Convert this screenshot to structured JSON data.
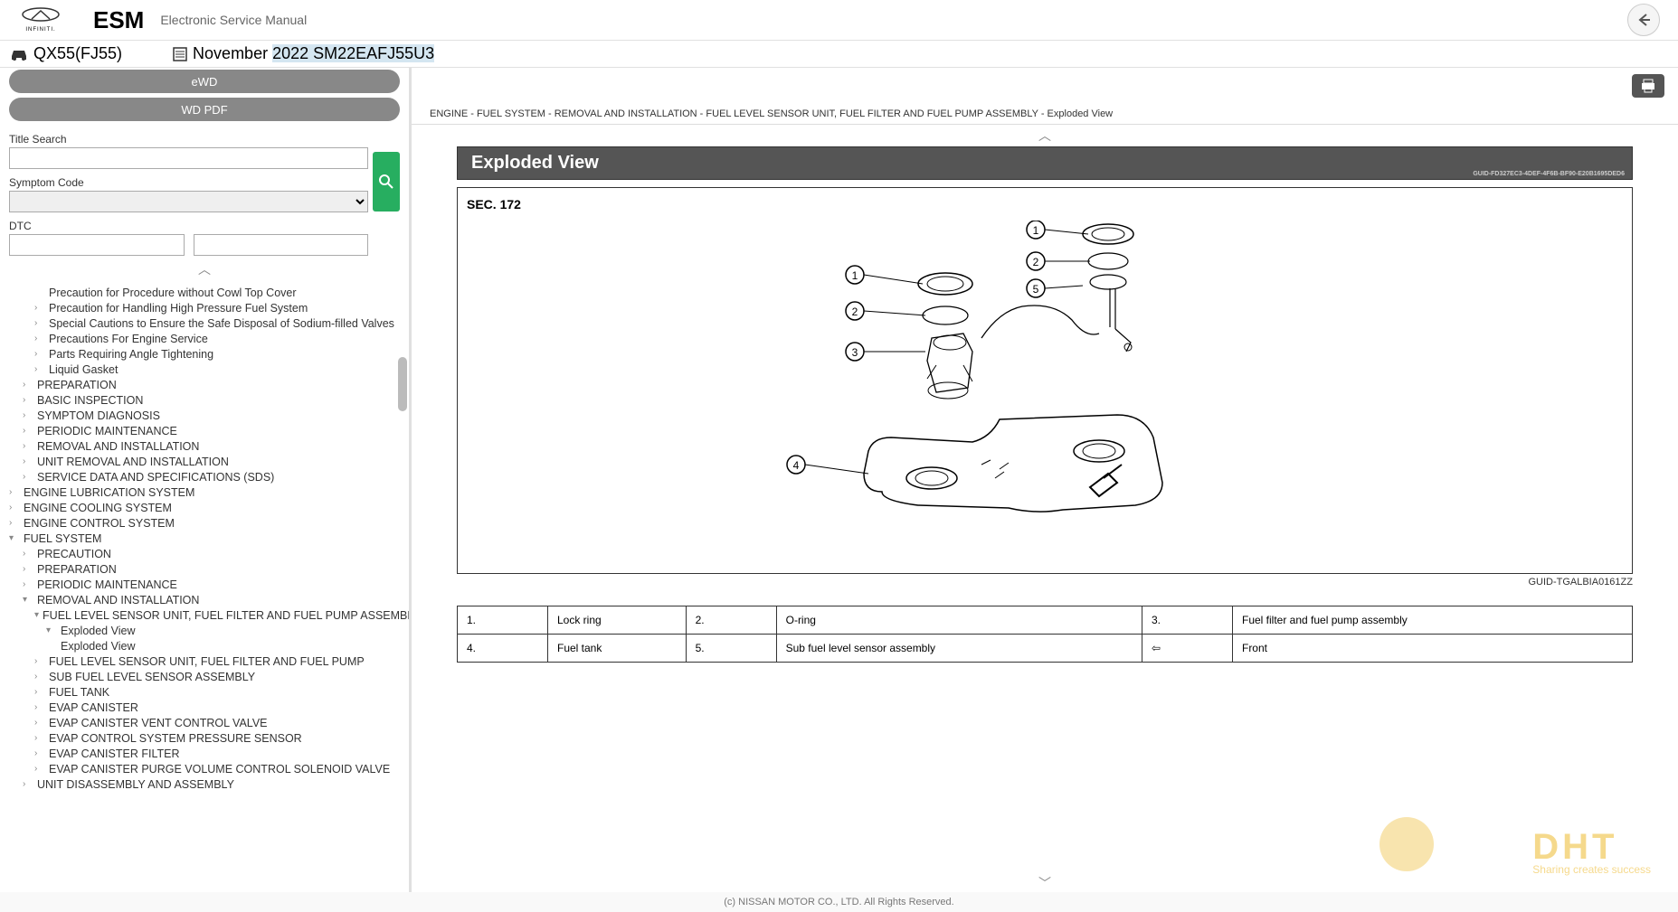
{
  "header": {
    "brand": "INFINITI.",
    "esm": "ESM",
    "subtitle": "Electronic Service Manual"
  },
  "model": {
    "name": "QX55(FJ55)",
    "month": "November ",
    "year": "2022",
    "code": " SM22EAFJ55U3"
  },
  "sidebar": {
    "ewd": "eWD",
    "wdpdf": "WD PDF",
    "title_search": "Title Search",
    "symptom_code": "Symptom Code",
    "dtc": "DTC"
  },
  "tree": [
    {
      "level": 2,
      "chev": "",
      "label": "Precaution for Procedure without Cowl Top Cover"
    },
    {
      "level": 2,
      "chev": "›",
      "label": "Precaution for Handling High Pressure Fuel System"
    },
    {
      "level": 2,
      "chev": "›",
      "label": "Special Cautions to Ensure the Safe Disposal of Sodium-filled Valves"
    },
    {
      "level": 2,
      "chev": "›",
      "label": "Precautions For Engine Service"
    },
    {
      "level": 2,
      "chev": "›",
      "label": "Parts Requiring Angle Tightening"
    },
    {
      "level": 2,
      "chev": "›",
      "label": "Liquid Gasket"
    },
    {
      "level": 1,
      "chev": "›",
      "label": "PREPARATION"
    },
    {
      "level": 1,
      "chev": "›",
      "label": "BASIC INSPECTION"
    },
    {
      "level": 1,
      "chev": "›",
      "label": "SYMPTOM DIAGNOSIS"
    },
    {
      "level": 1,
      "chev": "›",
      "label": "PERIODIC MAINTENANCE"
    },
    {
      "level": 1,
      "chev": "›",
      "label": "REMOVAL AND INSTALLATION"
    },
    {
      "level": 1,
      "chev": "›",
      "label": "UNIT REMOVAL AND INSTALLATION"
    },
    {
      "level": 1,
      "chev": "›",
      "label": "SERVICE DATA AND SPECIFICATIONS (SDS)"
    },
    {
      "level": 0,
      "chev": "›",
      "label": "ENGINE LUBRICATION SYSTEM"
    },
    {
      "level": 0,
      "chev": "›",
      "label": "ENGINE COOLING SYSTEM"
    },
    {
      "level": 0,
      "chev": "›",
      "label": "ENGINE CONTROL SYSTEM"
    },
    {
      "level": 0,
      "chev": "▾",
      "label": "FUEL SYSTEM"
    },
    {
      "level": 1,
      "chev": "›",
      "label": "PRECAUTION"
    },
    {
      "level": 1,
      "chev": "›",
      "label": "PREPARATION"
    },
    {
      "level": 1,
      "chev": "›",
      "label": "PERIODIC MAINTENANCE"
    },
    {
      "level": 1,
      "chev": "▾",
      "label": "REMOVAL AND INSTALLATION"
    },
    {
      "level": 2,
      "chev": "▾",
      "label": "FUEL LEVEL SENSOR UNIT, FUEL FILTER AND FUEL PUMP ASSEMBLY"
    },
    {
      "level": 3,
      "chev": "▾",
      "label": "Exploded View"
    },
    {
      "level": 3,
      "chev": "",
      "label": "Exploded View"
    },
    {
      "level": 2,
      "chev": "›",
      "label": "FUEL LEVEL SENSOR UNIT, FUEL FILTER AND FUEL PUMP"
    },
    {
      "level": 2,
      "chev": "›",
      "label": "SUB FUEL LEVEL SENSOR ASSEMBLY"
    },
    {
      "level": 2,
      "chev": "›",
      "label": "FUEL TANK"
    },
    {
      "level": 2,
      "chev": "›",
      "label": "EVAP CANISTER"
    },
    {
      "level": 2,
      "chev": "›",
      "label": "EVAP CANISTER VENT CONTROL VALVE"
    },
    {
      "level": 2,
      "chev": "›",
      "label": "EVAP CONTROL SYSTEM PRESSURE SENSOR"
    },
    {
      "level": 2,
      "chev": "›",
      "label": "EVAP CANISTER FILTER"
    },
    {
      "level": 2,
      "chev": "›",
      "label": "EVAP CANISTER PURGE VOLUME CONTROL SOLENOID VALVE"
    },
    {
      "level": 1,
      "chev": "›",
      "label": "UNIT DISASSEMBLY AND ASSEMBLY"
    }
  ],
  "breadcrumb": "ENGINE - FUEL SYSTEM - REMOVAL AND INSTALLATION - FUEL LEVEL SENSOR UNIT, FUEL FILTER AND FUEL PUMP ASSEMBLY - Exploded View",
  "content": {
    "title": "Exploded View",
    "guid_top": "GUID-FD327EC3-4DEF-4F6B-BF90-E20B1695DED6",
    "sec": "SEC. 172",
    "guid_bottom": "GUID-TGALBIA0161ZZ"
  },
  "parts_table": {
    "rows": [
      {
        "n1": "1.",
        "l1": "Lock ring",
        "n2": "2.",
        "l2": "O-ring",
        "n3": "3.",
        "l3": "Fuel filter and fuel pump assembly"
      },
      {
        "n1": "4.",
        "l1": "Fuel tank",
        "n2": "5.",
        "l2": "Sub fuel level sensor assembly",
        "n3": "⇦",
        "l3": "Front"
      }
    ]
  },
  "footer": "(c) NISSAN MOTOR CO., LTD. All Rights Reserved.",
  "watermark": {
    "main": "DHT",
    "sub": "Sharing creates success"
  }
}
